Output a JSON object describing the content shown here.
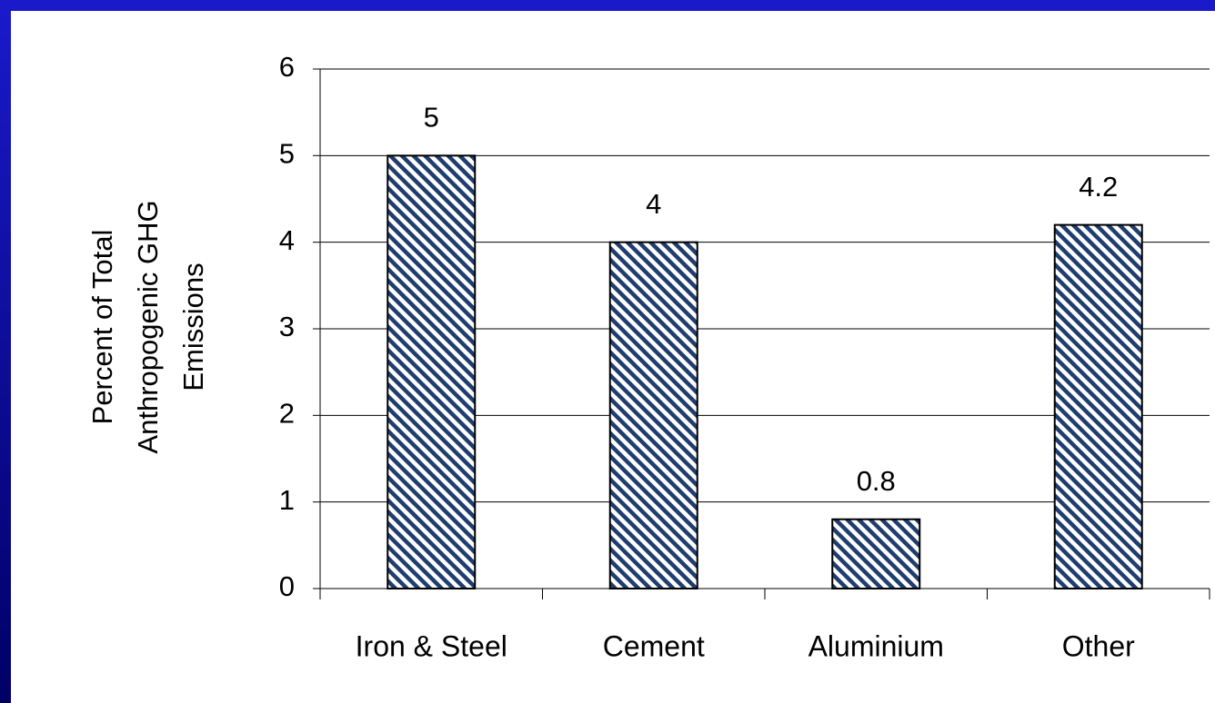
{
  "chart_data": {
    "type": "bar",
    "y_label": [
      "Percent of Total",
      "Anthropogenic GHG",
      "Emissions"
    ],
    "categories": [
      "Iron & Steel",
      "Cement",
      "Aluminium",
      "Other"
    ],
    "values": [
      5,
      4,
      0.8,
      4.2
    ],
    "color": "#1f3d6e",
    "ylim": [
      0,
      6
    ],
    "yticks": [
      0,
      1,
      2,
      3,
      4,
      5,
      6
    ],
    "grid": true
  }
}
